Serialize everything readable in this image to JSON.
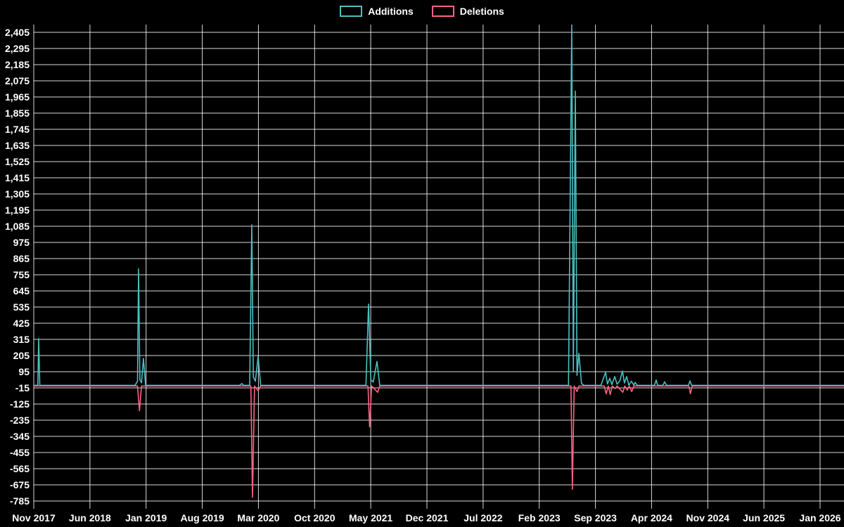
{
  "legend": {
    "items": [
      {
        "label": "Additions",
        "color": "#4bc0c0"
      },
      {
        "label": "Deletions",
        "color": "#ff6384"
      }
    ]
  },
  "chart_data": {
    "type": "line",
    "title": "",
    "legend_position": "top",
    "grid": true,
    "grid_color": "#ffffff",
    "background_color": "#000000",
    "x_tick_labels": [
      "Nov 2017",
      "Jun 2018",
      "Jan 2019",
      "Aug 2019",
      "Mar 2020",
      "Oct 2020",
      "May 2021",
      "Dec 2021",
      "Jul 2022",
      "Feb 2023",
      "Sep 2023",
      "Apr 2024",
      "Nov 2024",
      "Jun 2025",
      "Jan 2026"
    ],
    "y_ticks": [
      2405,
      2295,
      2185,
      2075,
      1965,
      1855,
      1745,
      1635,
      1525,
      1415,
      1305,
      1195,
      1085,
      975,
      865,
      755,
      645,
      535,
      425,
      315,
      205,
      95,
      -15,
      -125,
      -235,
      -345,
      -455,
      -565,
      -675,
      -785
    ],
    "y_tick_labels": [
      "2,405",
      "2,295",
      "2,185",
      "2,075",
      "1,965",
      "1,855",
      "1,745",
      "1,635",
      "1,525",
      "1,415",
      "1,305",
      "1,195",
      "1,085",
      "975",
      "865",
      "755",
      "645",
      "535",
      "425",
      "315",
      "205",
      "95",
      "-15",
      "-125",
      "-235",
      "-345",
      "-455",
      "-565",
      "-675",
      "-785"
    ],
    "ylim": [
      -785,
      2405
    ],
    "x_encoding": "fraction of x-axis from the Nov 2017 tick (0.0) to the right edge (1.0); ticks every 7 months",
    "series": [
      {
        "name": "Additions",
        "color": "#4bc0c0",
        "points": [
          [
            0.0,
            2
          ],
          [
            0.005,
            2
          ],
          [
            0.0061,
            320
          ],
          [
            0.0075,
            2
          ],
          [
            0.125,
            2
          ],
          [
            0.128,
            30
          ],
          [
            0.1293,
            795
          ],
          [
            0.131,
            40
          ],
          [
            0.133,
            20
          ],
          [
            0.1354,
            185
          ],
          [
            0.138,
            2
          ],
          [
            0.254,
            2
          ],
          [
            0.2569,
            14
          ],
          [
            0.259,
            2
          ],
          [
            0.2665,
            2
          ],
          [
            0.2691,
            1095
          ],
          [
            0.271,
            60
          ],
          [
            0.2735,
            30
          ],
          [
            0.2769,
            200
          ],
          [
            0.28,
            2
          ],
          [
            0.41,
            2
          ],
          [
            0.4132,
            555
          ],
          [
            0.416,
            40
          ],
          [
            0.419,
            25
          ],
          [
            0.4236,
            165
          ],
          [
            0.427,
            2
          ],
          [
            0.66,
            2
          ],
          [
            0.664,
            2460
          ],
          [
            0.666,
            100
          ],
          [
            0.6684,
            2005
          ],
          [
            0.6705,
            70
          ],
          [
            0.6727,
            220
          ],
          [
            0.676,
            15
          ],
          [
            0.679,
            2
          ],
          [
            0.7,
            2
          ],
          [
            0.7057,
            90
          ],
          [
            0.708,
            12
          ],
          [
            0.7109,
            50
          ],
          [
            0.7135,
            8
          ],
          [
            0.717,
            62
          ],
          [
            0.72,
            10
          ],
          [
            0.7235,
            35
          ],
          [
            0.7266,
            100
          ],
          [
            0.729,
            18
          ],
          [
            0.7318,
            62
          ],
          [
            0.7345,
            4
          ],
          [
            0.7378,
            30
          ],
          [
            0.7405,
            4
          ],
          [
            0.7422,
            22
          ],
          [
            0.745,
            2
          ],
          [
            0.766,
            2
          ],
          [
            0.7682,
            38
          ],
          [
            0.77,
            2
          ],
          [
            0.7765,
            2
          ],
          [
            0.7786,
            26
          ],
          [
            0.781,
            2
          ],
          [
            0.808,
            2
          ],
          [
            0.8099,
            32
          ],
          [
            0.812,
            2
          ],
          [
            1.0,
            2
          ]
        ]
      },
      {
        "name": "Deletions",
        "color": "#ff6384",
        "points": [
          [
            0.0,
            -2
          ],
          [
            0.128,
            -2
          ],
          [
            0.1305,
            -170
          ],
          [
            0.133,
            -2
          ],
          [
            0.268,
            -2
          ],
          [
            0.27,
            -760
          ],
          [
            0.2725,
            -2
          ],
          [
            0.2769,
            -35
          ],
          [
            0.28,
            -2
          ],
          [
            0.4125,
            -2
          ],
          [
            0.4145,
            -280
          ],
          [
            0.417,
            -2
          ],
          [
            0.4245,
            -45
          ],
          [
            0.427,
            -2
          ],
          [
            0.663,
            -2
          ],
          [
            0.6648,
            -705
          ],
          [
            0.667,
            -2
          ],
          [
            0.6705,
            -40
          ],
          [
            0.673,
            -2
          ],
          [
            0.704,
            -2
          ],
          [
            0.7065,
            -55
          ],
          [
            0.709,
            -2
          ],
          [
            0.7115,
            -60
          ],
          [
            0.714,
            -2
          ],
          [
            0.7175,
            -20
          ],
          [
            0.72,
            -2
          ],
          [
            0.727,
            -45
          ],
          [
            0.7295,
            -2
          ],
          [
            0.7325,
            -30
          ],
          [
            0.735,
            -2
          ],
          [
            0.738,
            -40
          ],
          [
            0.7405,
            -2
          ],
          [
            0.8085,
            -2
          ],
          [
            0.8105,
            -55
          ],
          [
            0.8125,
            -2
          ],
          [
            1.0,
            -2
          ]
        ]
      }
    ]
  }
}
